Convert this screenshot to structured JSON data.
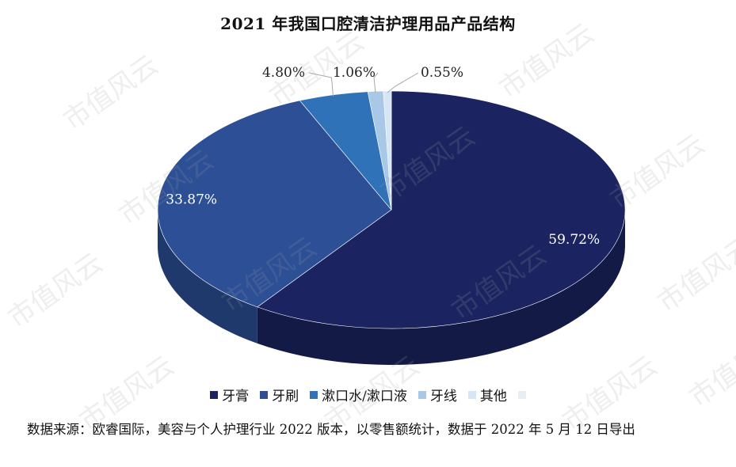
{
  "chart_data": {
    "type": "pie",
    "title": "2021 年我国口腔清洁护理用品产品结构",
    "series": [
      {
        "name": "牙膏",
        "value": 59.72,
        "label": "59.72%",
        "color": "#1b2461"
      },
      {
        "name": "牙刷",
        "value": 33.87,
        "label": "33.87%",
        "color": "#2d4f96"
      },
      {
        "name": "漱口水/漱口液",
        "value": 4.8,
        "label": "4.80%",
        "color": "#2f72b7"
      },
      {
        "name": "牙线",
        "value": 1.06,
        "label": "1.06%",
        "color": "#a9c8e8"
      },
      {
        "name": "其他",
        "value": 0.55,
        "label": "0.55%",
        "color": "#d6e6f5"
      }
    ],
    "legend_position": "bottom",
    "extra_legend_swatch_color": "#e8eef6"
  },
  "footer": {
    "source": "数据来源：欧睿国际，美容与个人护理行业 2022 版本，以零售额统计，数据于 2022 年 5 月 12 日导出"
  },
  "watermark_text": "市值风云"
}
